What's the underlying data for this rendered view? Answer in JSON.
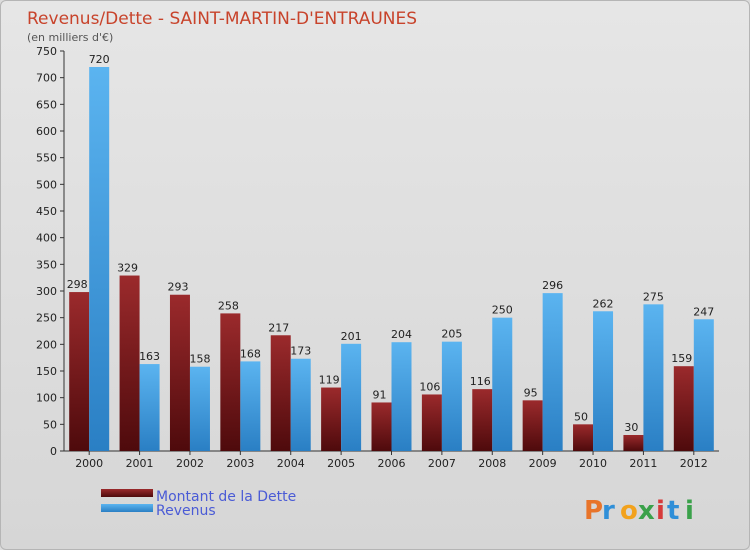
{
  "chart_data": {
    "type": "bar",
    "title": "Revenus/Dette - SAINT-MARTIN-D'ENTRAUNES",
    "subtitle": "(en milliers d'€)",
    "categories": [
      "2000",
      "2001",
      "2002",
      "2003",
      "2004",
      "2005",
      "2006",
      "2007",
      "2008",
      "2009",
      "2010",
      "2011",
      "2012"
    ],
    "series": [
      {
        "name": "Montant de la Dette",
        "values": [
          298,
          329,
          293,
          258,
          217,
          119,
          91,
          106,
          116,
          95,
          50,
          30,
          159
        ],
        "color": "#7a1518"
      },
      {
        "name": "Revenus",
        "values": [
          720,
          163,
          158,
          168,
          173,
          201,
          204,
          205,
          250,
          296,
          262,
          275,
          247
        ],
        "color": "#3a9be0"
      }
    ],
    "ylim": [
      0,
      750
    ],
    "ytick_step": 50,
    "grid": false,
    "legend_position": "bottom-left"
  },
  "watermark": {
    "text": "Proxiti"
  }
}
